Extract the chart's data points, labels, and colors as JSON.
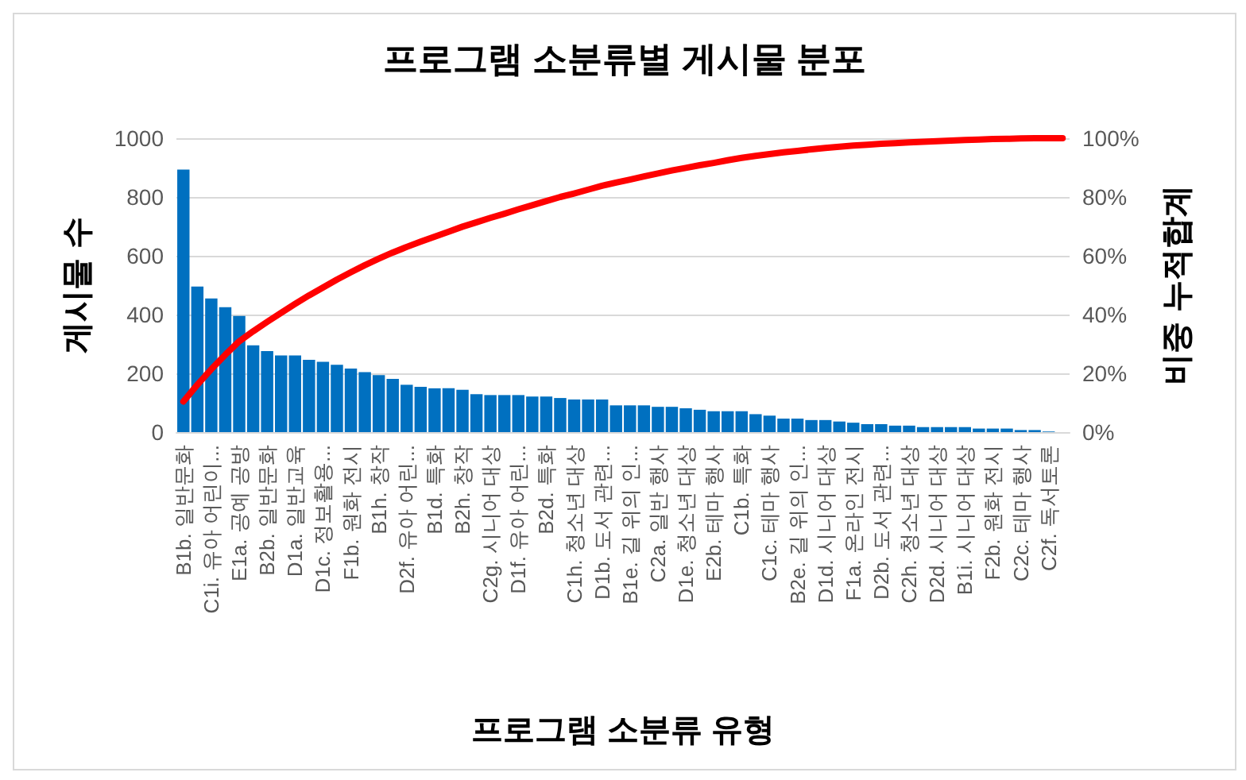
{
  "chart_data": {
    "type": "bar",
    "title": "프로그램 소분류별 게시물 분포",
    "xlabel": "프로그램 소분류 유형",
    "ylabel": "게시물 수",
    "y2label": "비중 누적합계",
    "categories": [
      "B1b. 일반문화",
      null,
      "C1i. 유아 어린이...",
      null,
      "E1a. 공예 공방",
      null,
      "B2b. 일반문화",
      null,
      "D1a. 일반교육",
      null,
      "D1c. 정보활용...",
      null,
      "F1b. 원화 전시",
      null,
      "B1h. 창작",
      null,
      "D2f. 유아 어린...",
      null,
      "B1d. 특화",
      null,
      "B2h. 창작",
      null,
      "C2g. 시니어 대상",
      null,
      "D1f. 유아 어린...",
      null,
      "B2d. 특화",
      null,
      "C1h. 청소년 대상",
      null,
      "D1b. 도서 관련...",
      null,
      "B1e. 길 위의 인...",
      null,
      "C2a. 일반 행사",
      null,
      "D1e. 청소년 대상",
      null,
      "E2b. 테마 행사",
      null,
      "C1b. 특화",
      null,
      "C1c. 테마 행사",
      null,
      "B2e. 길 위의 인...",
      null,
      "D1d. 시니어 대상",
      null,
      "F1a. 온라인 전시",
      null,
      "D2b. 도서 관련...",
      null,
      "C2h. 청소년 대상",
      null,
      "D2d. 시니어 대상",
      null,
      "B1i. 시니어 대상",
      null,
      "F2b. 원화 전시",
      null,
      "C2c. 테마 행사",
      null,
      "C2f. 독서토론",
      null
    ],
    "series": [
      {
        "color": "#0070c0",
        "values": [
          893,
          495,
          455,
          425,
          395,
          295,
          276,
          261,
          261,
          246,
          239,
          229,
          216,
          204,
          194,
          181,
          161,
          154,
          149,
          149,
          144,
          129,
          126,
          126,
          126,
          121,
          121,
          116,
          111,
          111,
          111,
          91,
          91,
          91,
          86,
          86,
          81,
          76,
          71,
          71,
          71,
          61,
          56,
          46,
          46,
          41,
          41,
          36,
          32,
          27,
          27,
          22,
          22,
          17,
          17,
          17,
          17,
          12,
          12,
          12,
          7,
          7,
          2,
          null
        ]
      },
      {
        "type": "line",
        "axis": "y2",
        "color": "#ff0000",
        "marker": "none",
        "values": [
          10.4,
          16.1,
          21.4,
          26.3,
          30.9,
          34.3,
          37.5,
          40.6,
          43.6,
          46.5,
          49.2,
          51.9,
          54.4,
          56.8,
          59.0,
          61.1,
          63.0,
          64.8,
          66.5,
          68.2,
          69.9,
          71.4,
          72.9,
          74.3,
          75.8,
          77.2,
          78.6,
          80.0,
          81.2,
          82.5,
          83.8,
          84.9,
          85.9,
          87.0,
          88.0,
          89.0,
          89.9,
          90.8,
          91.6,
          92.5,
          93.3,
          94.0,
          94.6,
          95.2,
          95.7,
          96.2,
          96.7,
          97.1,
          97.5,
          97.8,
          98.1,
          98.3,
          98.6,
          98.8,
          99.0,
          99.2,
          99.4,
          99.5,
          99.7,
          99.8,
          99.9,
          100.0,
          100.0,
          100.0
        ]
      }
    ],
    "ylim": [
      0,
      1000
    ],
    "yticks": [
      0,
      200,
      400,
      600,
      800,
      1000
    ],
    "y2lim": [
      0,
      100
    ],
    "y2ticks": [
      {
        "value": 0,
        "label": "0%"
      },
      {
        "value": 20,
        "label": "20%"
      },
      {
        "value": 40,
        "label": "40%"
      },
      {
        "value": 60,
        "label": "60%"
      },
      {
        "value": 80,
        "label": "80%"
      },
      {
        "value": 100,
        "label": "100%"
      }
    ],
    "grid": "y"
  }
}
